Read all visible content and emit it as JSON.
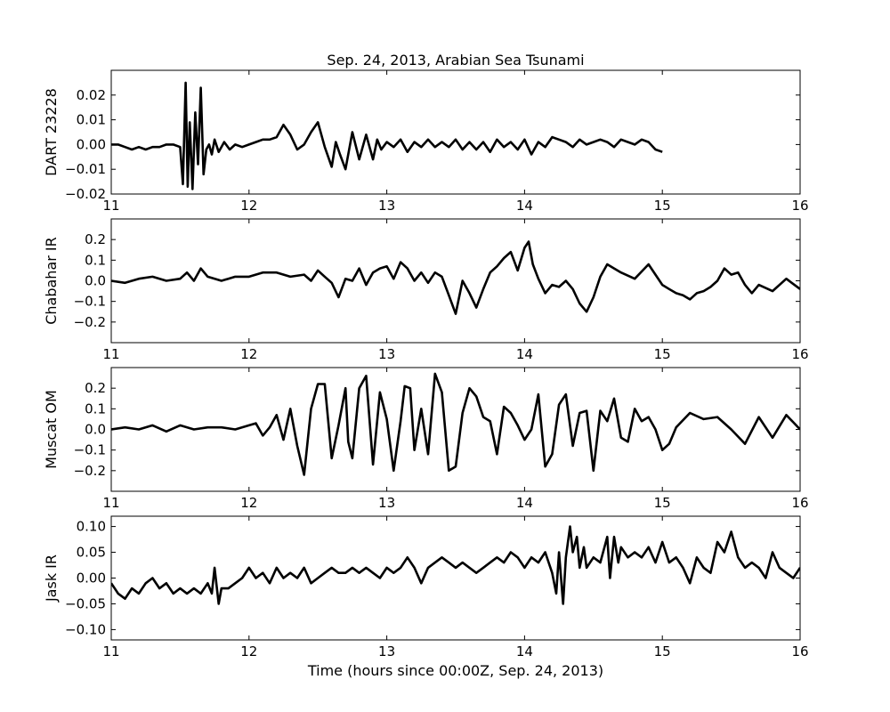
{
  "figure": {
    "title": "Sep. 24, 2013, Arabian Sea Tsunami",
    "xlabel": "Time (hours since 00:00Z, Sep. 24, 2013)"
  },
  "chart_data": [
    {
      "type": "line",
      "ylabel": "DART 23228",
      "xlim": [
        11,
        16
      ],
      "ylim": [
        -0.02,
        0.03
      ],
      "xticks": [
        "11",
        "12",
        "13",
        "14",
        "15",
        "16"
      ],
      "yticks": [
        -0.02,
        -0.01,
        0.0,
        0.01,
        0.02
      ],
      "ytick_labels": [
        "−0.02",
        "−0.01",
        "0.00",
        "0.01",
        "0.02"
      ],
      "series": [
        {
          "x": [
            11.0,
            11.05,
            11.1,
            11.15,
            11.2,
            11.25,
            11.3,
            11.35,
            11.4,
            11.45,
            11.5,
            11.52,
            11.54,
            11.555,
            11.57,
            11.59,
            11.61,
            11.63,
            11.65,
            11.67,
            11.69,
            11.71,
            11.73,
            11.75,
            11.78,
            11.82,
            11.86,
            11.9,
            11.95,
            12.0,
            12.05,
            12.1,
            12.15,
            12.2,
            12.25,
            12.3,
            12.35,
            12.4,
            12.45,
            12.5,
            12.55,
            12.6,
            12.63,
            12.66,
            12.7,
            12.75,
            12.8,
            12.85,
            12.9,
            12.93,
            12.96,
            13.0,
            13.05,
            13.1,
            13.15,
            13.2,
            13.25,
            13.3,
            13.35,
            13.4,
            13.45,
            13.5,
            13.55,
            13.6,
            13.65,
            13.7,
            13.75,
            13.8,
            13.85,
            13.9,
            13.95,
            14.0,
            14.05,
            14.1,
            14.15,
            14.2,
            14.25,
            14.3,
            14.35,
            14.4,
            14.45,
            14.5,
            14.55,
            14.6,
            14.65,
            14.7,
            14.75,
            14.8,
            14.85,
            14.9,
            14.95,
            15.0
          ],
          "y": [
            0.0,
            0.0,
            -0.001,
            -0.002,
            -0.001,
            -0.002,
            -0.001,
            -0.001,
            0.0,
            0.0,
            -0.001,
            -0.016,
            0.025,
            -0.017,
            0.009,
            -0.018,
            0.013,
            -0.008,
            0.023,
            -0.012,
            -0.002,
            0.0,
            -0.004,
            0.002,
            -0.003,
            0.001,
            -0.002,
            0.0,
            -0.001,
            0.0,
            0.001,
            0.002,
            0.002,
            0.003,
            0.008,
            0.004,
            -0.002,
            0.0,
            0.005,
            0.009,
            -0.001,
            -0.009,
            0.001,
            -0.004,
            -0.01,
            0.005,
            -0.006,
            0.004,
            -0.006,
            0.002,
            -0.002,
            0.001,
            -0.001,
            0.002,
            -0.003,
            0.001,
            -0.001,
            0.002,
            -0.001,
            0.001,
            -0.001,
            0.002,
            -0.002,
            0.001,
            -0.002,
            0.001,
            -0.003,
            0.002,
            -0.001,
            0.001,
            -0.002,
            0.002,
            -0.004,
            0.001,
            -0.001,
            0.003,
            0.002,
            0.001,
            -0.001,
            0.002,
            0.0,
            0.001,
            0.002,
            0.001,
            -0.001,
            0.002,
            0.001,
            0.0,
            0.002,
            0.001,
            -0.002,
            -0.003
          ]
        }
      ]
    },
    {
      "type": "line",
      "ylabel": "Chabahar IR",
      "xlim": [
        11,
        16
      ],
      "ylim": [
        -0.3,
        0.3
      ],
      "xticks": [
        "11",
        "12",
        "13",
        "14",
        "15",
        "16"
      ],
      "yticks": [
        -0.2,
        -0.1,
        0.0,
        0.1,
        0.2
      ],
      "ytick_labels": [
        "−0.2",
        "−0.1",
        "0.0",
        "0.1",
        "0.2"
      ],
      "series": [
        {
          "x": [
            11.0,
            11.1,
            11.2,
            11.3,
            11.4,
            11.5,
            11.55,
            11.6,
            11.65,
            11.7,
            11.8,
            11.9,
            12.0,
            12.1,
            12.2,
            12.3,
            12.4,
            12.45,
            12.5,
            12.55,
            12.6,
            12.65,
            12.7,
            12.75,
            12.8,
            12.85,
            12.9,
            12.95,
            13.0,
            13.05,
            13.1,
            13.15,
            13.2,
            13.25,
            13.3,
            13.35,
            13.4,
            13.45,
            13.5,
            13.55,
            13.6,
            13.65,
            13.7,
            13.75,
            13.8,
            13.85,
            13.9,
            13.95,
            14.0,
            14.03,
            14.06,
            14.1,
            14.15,
            14.2,
            14.25,
            14.3,
            14.35,
            14.4,
            14.45,
            14.5,
            14.55,
            14.6,
            14.65,
            14.7,
            14.8,
            14.9,
            15.0,
            15.05,
            15.1,
            15.15,
            15.2,
            15.25,
            15.3,
            15.35,
            15.4,
            15.45,
            15.5,
            15.55,
            15.6,
            15.65,
            15.7,
            15.8,
            15.9,
            16.0
          ],
          "y": [
            0.0,
            -0.01,
            0.01,
            0.02,
            0.0,
            0.01,
            0.04,
            0.0,
            0.06,
            0.02,
            0.0,
            0.02,
            0.02,
            0.04,
            0.04,
            0.02,
            0.03,
            0.0,
            0.05,
            0.02,
            -0.01,
            -0.08,
            0.01,
            0.0,
            0.06,
            -0.02,
            0.04,
            0.06,
            0.07,
            0.01,
            0.09,
            0.06,
            0.0,
            0.04,
            -0.01,
            0.04,
            0.02,
            -0.07,
            -0.16,
            0.0,
            -0.06,
            -0.13,
            -0.04,
            0.04,
            0.07,
            0.11,
            0.14,
            0.05,
            0.16,
            0.19,
            0.08,
            0.01,
            -0.06,
            -0.02,
            -0.03,
            0.0,
            -0.04,
            -0.11,
            -0.15,
            -0.08,
            0.02,
            0.08,
            0.06,
            0.04,
            0.01,
            0.08,
            -0.02,
            -0.04,
            -0.06,
            -0.07,
            -0.09,
            -0.06,
            -0.05,
            -0.03,
            0.0,
            0.06,
            0.03,
            0.04,
            -0.02,
            -0.06,
            -0.02,
            -0.05,
            0.01,
            -0.04
          ]
        }
      ]
    },
    {
      "type": "line",
      "ylabel": "Muscat OM",
      "xlim": [
        11,
        16
      ],
      "ylim": [
        -0.3,
        0.3
      ],
      "xticks": [
        "11",
        "12",
        "13",
        "14",
        "15",
        "16"
      ],
      "yticks": [
        -0.2,
        -0.1,
        0.0,
        0.1,
        0.2
      ],
      "ytick_labels": [
        "−0.2",
        "−0.1",
        "0.0",
        "0.1",
        "0.2"
      ],
      "series": [
        {
          "x": [
            11.0,
            11.1,
            11.2,
            11.3,
            11.4,
            11.5,
            11.6,
            11.7,
            11.8,
            11.9,
            12.0,
            12.05,
            12.1,
            12.15,
            12.2,
            12.25,
            12.3,
            12.35,
            12.4,
            12.45,
            12.5,
            12.55,
            12.6,
            12.65,
            12.7,
            12.72,
            12.75,
            12.8,
            12.85,
            12.9,
            12.95,
            13.0,
            13.05,
            13.1,
            13.13,
            13.17,
            13.2,
            13.25,
            13.3,
            13.35,
            13.4,
            13.45,
            13.5,
            13.55,
            13.6,
            13.65,
            13.7,
            13.75,
            13.8,
            13.85,
            13.9,
            13.95,
            14.0,
            14.05,
            14.1,
            14.15,
            14.2,
            14.25,
            14.3,
            14.35,
            14.4,
            14.45,
            14.5,
            14.55,
            14.6,
            14.65,
            14.7,
            14.75,
            14.8,
            14.85,
            14.9,
            14.95,
            15.0,
            15.05,
            15.1,
            15.2,
            15.3,
            15.4,
            15.5,
            15.6,
            15.7,
            15.8,
            15.9,
            16.0
          ],
          "y": [
            0.0,
            0.01,
            0.0,
            0.02,
            -0.01,
            0.02,
            0.0,
            0.01,
            0.01,
            0.0,
            0.02,
            0.03,
            -0.03,
            0.01,
            0.07,
            -0.05,
            0.1,
            -0.08,
            -0.22,
            0.1,
            0.22,
            0.22,
            -0.14,
            0.02,
            0.2,
            -0.06,
            -0.14,
            0.2,
            0.26,
            -0.17,
            0.18,
            0.05,
            -0.2,
            0.04,
            0.21,
            0.2,
            -0.1,
            0.1,
            -0.12,
            0.27,
            0.18,
            -0.2,
            -0.18,
            0.08,
            0.2,
            0.16,
            0.06,
            0.04,
            -0.12,
            0.11,
            0.08,
            0.02,
            -0.05,
            0.0,
            0.17,
            -0.18,
            -0.12,
            0.12,
            0.17,
            -0.08,
            0.08,
            0.09,
            -0.2,
            0.09,
            0.04,
            0.15,
            -0.04,
            -0.06,
            0.1,
            0.04,
            0.06,
            0.0,
            -0.1,
            -0.07,
            0.01,
            0.08,
            0.05,
            0.06,
            0.0,
            -0.07,
            0.06,
            -0.04,
            0.07,
            0.0
          ]
        }
      ]
    },
    {
      "type": "line",
      "ylabel": "Jask IR",
      "xlim": [
        11,
        16
      ],
      "ylim": [
        -0.12,
        0.12
      ],
      "xticks": [
        "11",
        "12",
        "13",
        "14",
        "15",
        "16"
      ],
      "yticks": [
        -0.1,
        -0.05,
        0.0,
        0.05,
        0.1
      ],
      "ytick_labels": [
        "−0.10",
        "−0.05",
        "0.00",
        "0.05",
        "0.10"
      ],
      "series": [
        {
          "x": [
            11.0,
            11.05,
            11.1,
            11.15,
            11.2,
            11.25,
            11.3,
            11.35,
            11.4,
            11.45,
            11.5,
            11.55,
            11.6,
            11.65,
            11.7,
            11.73,
            11.75,
            11.78,
            11.8,
            11.85,
            11.9,
            11.95,
            12.0,
            12.05,
            12.1,
            12.15,
            12.2,
            12.25,
            12.3,
            12.35,
            12.4,
            12.45,
            12.5,
            12.55,
            12.6,
            12.65,
            12.7,
            12.75,
            12.8,
            12.85,
            12.9,
            12.95,
            13.0,
            13.05,
            13.1,
            13.15,
            13.2,
            13.25,
            13.3,
            13.35,
            13.4,
            13.45,
            13.5,
            13.55,
            13.6,
            13.65,
            13.7,
            13.75,
            13.8,
            13.85,
            13.9,
            13.95,
            14.0,
            14.05,
            14.1,
            14.15,
            14.2,
            14.23,
            14.25,
            14.28,
            14.3,
            14.33,
            14.35,
            14.38,
            14.4,
            14.43,
            14.45,
            14.5,
            14.55,
            14.6,
            14.62,
            14.65,
            14.68,
            14.7,
            14.75,
            14.8,
            14.85,
            14.9,
            14.95,
            15.0,
            15.05,
            15.1,
            15.15,
            15.2,
            15.25,
            15.3,
            15.35,
            15.4,
            15.45,
            15.5,
            15.55,
            15.6,
            15.65,
            15.7,
            15.75,
            15.8,
            15.85,
            15.9,
            15.95,
            16.0
          ],
          "y": [
            -0.01,
            -0.03,
            -0.04,
            -0.02,
            -0.03,
            -0.01,
            0.0,
            -0.02,
            -0.01,
            -0.03,
            -0.02,
            -0.03,
            -0.02,
            -0.03,
            -0.01,
            -0.03,
            0.02,
            -0.05,
            -0.02,
            -0.02,
            -0.01,
            0.0,
            0.02,
            0.0,
            0.01,
            -0.01,
            0.02,
            0.0,
            0.01,
            0.0,
            0.02,
            -0.01,
            0.0,
            0.01,
            0.02,
            0.01,
            0.01,
            0.02,
            0.01,
            0.02,
            0.01,
            0.0,
            0.02,
            0.01,
            0.02,
            0.04,
            0.02,
            -0.01,
            0.02,
            0.03,
            0.04,
            0.03,
            0.02,
            0.03,
            0.02,
            0.01,
            0.02,
            0.03,
            0.04,
            0.03,
            0.05,
            0.04,
            0.02,
            0.04,
            0.03,
            0.05,
            0.01,
            -0.03,
            0.05,
            -0.05,
            0.04,
            0.1,
            0.05,
            0.08,
            0.02,
            0.06,
            0.02,
            0.04,
            0.03,
            0.08,
            0.0,
            0.08,
            0.03,
            0.06,
            0.04,
            0.05,
            0.04,
            0.06,
            0.03,
            0.07,
            0.03,
            0.04,
            0.02,
            -0.01,
            0.04,
            0.02,
            0.01,
            0.07,
            0.05,
            0.09,
            0.04,
            0.02,
            0.03,
            0.02,
            0.0,
            0.05,
            0.02,
            0.01,
            0.0,
            0.02
          ]
        }
      ]
    }
  ]
}
